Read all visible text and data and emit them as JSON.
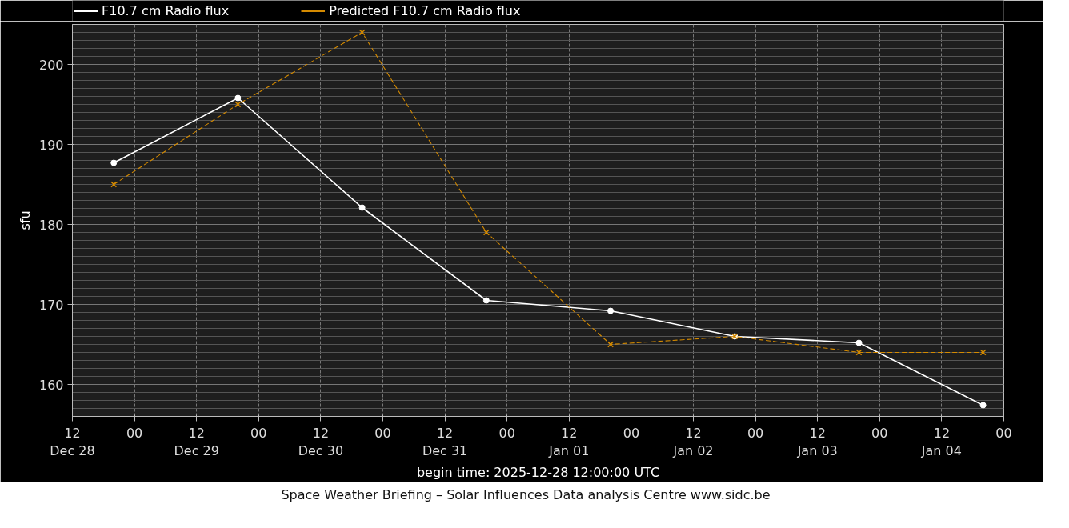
{
  "chart_data": {
    "type": "line",
    "xlabel": "begin time: 2025-12-28 12:00:00 UTC",
    "ylabel": "sfu",
    "x": [
      "2025-12-28T20:00",
      "2025-12-29T20:00",
      "2025-12-30T20:00",
      "2025-12-31T20:00",
      "2026-01-01T20:00",
      "2026-01-02T20:00",
      "2026-01-03T20:00",
      "2026-01-04T20:00"
    ],
    "series": [
      {
        "name": "F10.7 cm Radio flux",
        "color": "#ffffff",
        "marker": "circle",
        "line_style": "solid",
        "values": [
          187.7,
          195.8,
          182.1,
          170.5,
          169.2,
          166.0,
          165.2,
          157.4
        ]
      },
      {
        "name": "Predicted F10.7 cm Radio flux",
        "color": "#d48a00",
        "marker": "cross",
        "line_style": "dashed",
        "values": [
          185,
          195,
          204,
          179,
          165,
          166,
          164,
          164
        ]
      }
    ],
    "xlim": [
      "2025-12-28T12:00",
      "2026-01-05T00:00"
    ],
    "xticks": [
      {
        "value": "2025-12-28T12:00",
        "label": "12\nDec 28"
      },
      {
        "value": "2025-12-29T00:00",
        "label": "00"
      },
      {
        "value": "2025-12-29T12:00",
        "label": "12\nDec 29"
      },
      {
        "value": "2025-12-30T00:00",
        "label": "00"
      },
      {
        "value": "2025-12-30T12:00",
        "label": "12\nDec 30"
      },
      {
        "value": "2025-12-31T00:00",
        "label": "00"
      },
      {
        "value": "2025-12-31T12:00",
        "label": "12\nDec 31"
      },
      {
        "value": "2026-01-01T00:00",
        "label": "00"
      },
      {
        "value": "2026-01-01T12:00",
        "label": "12\nJan 01"
      },
      {
        "value": "2026-01-02T00:00",
        "label": "00"
      },
      {
        "value": "2026-01-02T12:00",
        "label": "12\nJan 02"
      },
      {
        "value": "2026-01-03T00:00",
        "label": "00"
      },
      {
        "value": "2026-01-03T12:00",
        "label": "12\nJan 03"
      },
      {
        "value": "2026-01-04T00:00",
        "label": "00"
      },
      {
        "value": "2026-01-04T12:00",
        "label": "12\nJan 04"
      },
      {
        "value": "2026-01-05T00:00",
        "label": "00"
      }
    ],
    "ylim": [
      156,
      205
    ],
    "yticks": [
      160,
      170,
      180,
      190,
      200
    ],
    "grid": true,
    "legend": "top left",
    "annotations": [
      "Space Weather Briefing – Solar Influences Data analysis Centre www.sidc.be"
    ]
  }
}
